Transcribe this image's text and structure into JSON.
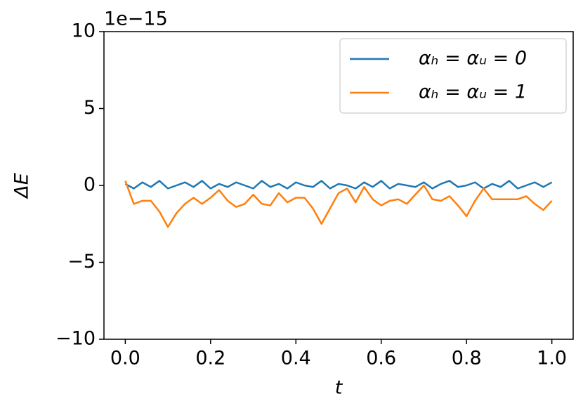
{
  "chart_data": {
    "type": "line",
    "x_label": "t",
    "y_label": "ΔE",
    "y_offset_label": "1e−15",
    "x": [
      0,
      0.02,
      0.04,
      0.06,
      0.08,
      0.1,
      0.12,
      0.14,
      0.16,
      0.18,
      0.2,
      0.22,
      0.24,
      0.26,
      0.28,
      0.3,
      0.32,
      0.34,
      0.36,
      0.38,
      0.4,
      0.42,
      0.44,
      0.46,
      0.48,
      0.5,
      0.52,
      0.54,
      0.56,
      0.58,
      0.6,
      0.62,
      0.64,
      0.66,
      0.68,
      0.7,
      0.72,
      0.74,
      0.76,
      0.78,
      0.8,
      0.82,
      0.84,
      0.86,
      0.88,
      0.9,
      0.92,
      0.94,
      0.96,
      0.98,
      1.0
    ],
    "series": [
      {
        "name": "αₕ = αᵤ = 0",
        "color": "#1f77b4",
        "values": [
          0.1,
          -0.2,
          0.2,
          -0.1,
          0.3,
          -0.2,
          0.0,
          0.2,
          -0.1,
          0.3,
          -0.2,
          0.1,
          -0.1,
          0.2,
          0.0,
          -0.2,
          0.3,
          -0.1,
          0.1,
          -0.2,
          0.2,
          0.0,
          -0.1,
          0.3,
          -0.2,
          0.1,
          0.0,
          -0.2,
          0.2,
          -0.1,
          0.3,
          -0.2,
          0.1,
          0.0,
          -0.1,
          0.2,
          -0.2,
          0.1,
          0.3,
          -0.1,
          0.0,
          0.2,
          -0.2,
          0.1,
          -0.1,
          0.3,
          -0.2,
          0.0,
          0.2,
          -0.1,
          0.2
        ]
      },
      {
        "name": "αₕ = αᵤ = 1",
        "color": "#ff7f0e",
        "values": [
          0.3,
          -1.2,
          -1.0,
          -1.0,
          -1.7,
          -2.7,
          -1.8,
          -1.2,
          -0.8,
          -1.2,
          -0.8,
          -0.3,
          -1.0,
          -1.4,
          -1.2,
          -0.6,
          -1.2,
          -1.3,
          -0.5,
          -1.1,
          -0.8,
          -0.8,
          -1.5,
          -2.5,
          -1.5,
          -0.5,
          -0.2,
          -1.1,
          -0.1,
          -0.9,
          -1.3,
          -1.0,
          -0.9,
          -1.2,
          -0.6,
          0.0,
          -0.9,
          -1.0,
          -0.7,
          -1.3,
          -2.0,
          -1.0,
          -0.2,
          -0.9,
          -0.9,
          -0.9,
          -0.9,
          -0.7,
          -1.2,
          -1.6,
          -1.0
        ]
      }
    ],
    "xlim": [
      -0.05,
      1.05
    ],
    "ylim": [
      -10,
      10
    ],
    "xticks": [
      {
        "value": 0,
        "label": "0.0"
      },
      0.2,
      0.4,
      0.6,
      0.8,
      {
        "value": 1,
        "label": "1.0"
      }
    ],
    "yticks": [
      {
        "value": -10,
        "label": "−10"
      },
      {
        "value": -5,
        "label": "−5"
      },
      0,
      5,
      10
    ],
    "grid": false,
    "legend": "upper right"
  }
}
